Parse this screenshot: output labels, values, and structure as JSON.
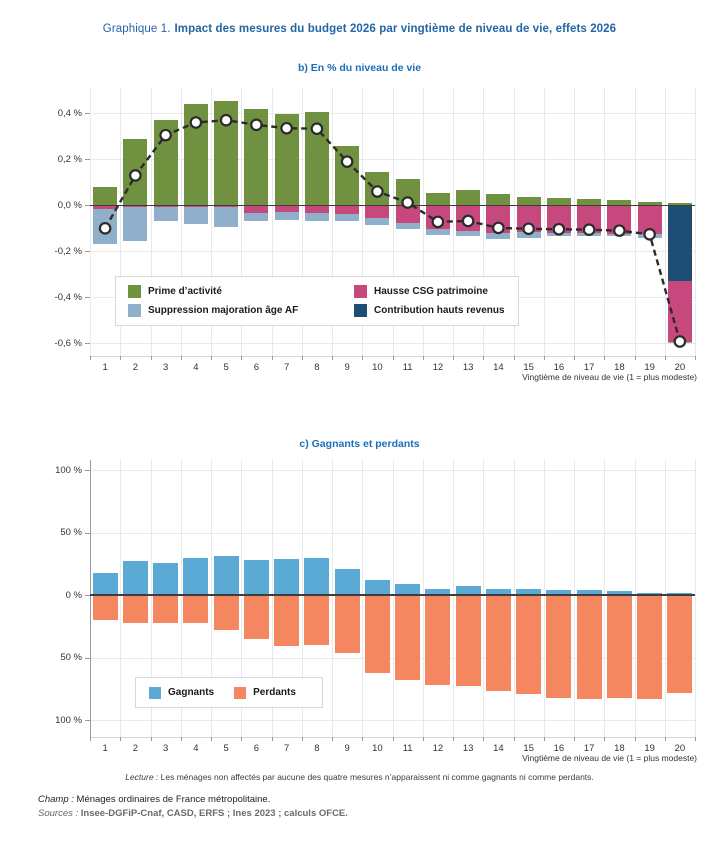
{
  "header": {
    "figure_label": "Graphique 1.",
    "title": "Impact des mesures du budget 2026 par vingtième de niveau de vie, effets 2026"
  },
  "colors": {
    "title_blue": "#2166a5",
    "section_blue": "#1a6fba",
    "grid": "#e9e9e9",
    "zero_line": "#3d3d3d",
    "axis_text": "#333333",
    "tick": "#9a9a9a",
    "total_line": "#2b2b2b",
    "prime_activite_green": "#6f9140",
    "suppression_af_blue": "#8fafca",
    "csg_pink": "#c7487d",
    "hauts_revenus_navy": "#1f4e74",
    "gagnants_blue": "#5baad5",
    "perdants_orange": "#f4875f"
  },
  "chart_data": [
    {
      "id": "b",
      "type": "bar",
      "subtype": "stacked-bars-with-total-line",
      "title": "b)  En % du niveau de vie",
      "xlabel": "Vingtième de niveau de vie (1 = plus modeste)",
      "categories": [
        1,
        2,
        3,
        4,
        5,
        6,
        7,
        8,
        9,
        10,
        11,
        12,
        13,
        14,
        15,
        16,
        17,
        18,
        19,
        20
      ],
      "series": [
        {
          "name": "Prime d’activité",
          "color": "#6f9140",
          "values": [
            0.08,
            0.29,
            0.37,
            0.44,
            0.455,
            0.42,
            0.395,
            0.405,
            0.26,
            0.145,
            0.115,
            0.055,
            0.065,
            0.048,
            0.038,
            0.03,
            0.028,
            0.025,
            0.014,
            0.008
          ]
        },
        {
          "name": "Contribution hauts revenus",
          "color": "#1f4e74",
          "values": [
            0,
            0,
            0,
            0,
            0,
            0,
            0,
            0,
            0,
            0,
            0,
            0,
            0,
            0,
            0,
            0,
            0,
            0,
            0,
            -0.33
          ]
        },
        {
          "name": "Hausse CSG patrimoine",
          "color": "#c7487d",
          "values": [
            -0.015,
            -0.006,
            -0.007,
            -0.008,
            -0.008,
            -0.032,
            -0.03,
            -0.034,
            -0.037,
            -0.055,
            -0.077,
            -0.105,
            -0.11,
            -0.12,
            -0.118,
            -0.12,
            -0.121,
            -0.124,
            -0.125,
            -0.265
          ]
        },
        {
          "name": "Suppression majoration âge AF",
          "color": "#8fafca",
          "values": [
            -0.155,
            -0.15,
            -0.062,
            -0.072,
            -0.085,
            -0.037,
            -0.032,
            -0.035,
            -0.031,
            -0.03,
            -0.026,
            -0.022,
            -0.023,
            -0.026,
            -0.022,
            -0.014,
            -0.013,
            -0.011,
            -0.015,
            -0.005
          ]
        }
      ],
      "line": {
        "name": "Total (en % du niveau de vie)",
        "values": [
          -0.1,
          0.13,
          0.305,
          0.36,
          0.37,
          0.35,
          0.335,
          0.333,
          0.19,
          0.06,
          0.012,
          -0.072,
          -0.068,
          -0.098,
          -0.102,
          -0.104,
          -0.106,
          -0.11,
          -0.126,
          -0.592
        ]
      },
      "ylim": [
        -0.655,
        0.51
      ],
      "ytick_values": [
        0.4,
        0.2,
        0,
        -0.2,
        -0.4,
        -0.6
      ],
      "ytick_labels": [
        "0,4 %",
        "0,2 %",
        "0,0 %",
        "-0,2 %",
        "-0,4 %",
        "-0,6 %"
      ],
      "grid": true,
      "legend_position": "inside lower-left, 2 columns"
    },
    {
      "id": "c",
      "type": "bar",
      "subtype": "diverging-bars",
      "title": "c)  Gagnants et perdants",
      "xlabel": "Vingtième de niveau de vie (1 = plus modeste)",
      "categories": [
        1,
        2,
        3,
        4,
        5,
        6,
        7,
        8,
        9,
        10,
        11,
        12,
        13,
        14,
        15,
        16,
        17,
        18,
        19,
        20
      ],
      "series": [
        {
          "name": "Gagnants",
          "color": "#5baad5",
          "values": [
            18,
            27,
            26,
            30,
            31,
            28,
            29,
            30,
            21,
            12,
            9,
            5,
            7,
            5,
            4.5,
            4,
            4,
            3,
            2,
            1.5
          ]
        },
        {
          "name": "Perdants",
          "color": "#f4875f",
          "inverted": true,
          "values": [
            20,
            22,
            22,
            22,
            28,
            35,
            41,
            40,
            46,
            62,
            68,
            72,
            73,
            77,
            79,
            82,
            83,
            82,
            83,
            78
          ]
        }
      ],
      "ylim": [
        -113.6,
        108
      ],
      "ytick_values": [
        100,
        50,
        0,
        -50,
        -100
      ],
      "ytick_labels": [
        "100 %",
        "50 %",
        "0 %",
        "50 %",
        "100 %"
      ],
      "axis_left": true,
      "grid": true,
      "legend_position": "inside lower-left, 1 row"
    }
  ],
  "footer": {
    "lecture_label": "Lecture :",
    "lecture_text": " Les ménages non affectés par aucune des quatre mesures n’apparaissent ni comme gagnants ni comme perdants.",
    "champ_label": "Champ :",
    "champ_text": " Ménages ordinaires de France métropolitaine.",
    "sources_label": "Sources :",
    "sources_text": " Insee-DGFiP-Cnaf, CASD, ERFS ; Ines 2023 ; calculs OFCE."
  }
}
